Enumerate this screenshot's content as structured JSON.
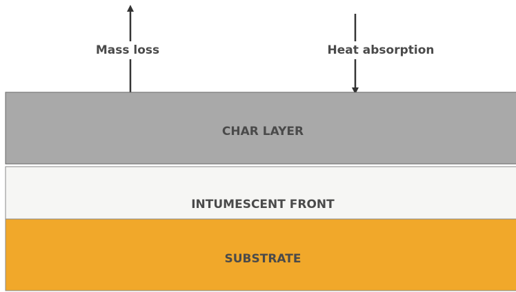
{
  "arrows": [
    {
      "label": "Mass loss"
    },
    {
      "label": "Heat absorption"
    }
  ],
  "layers": [
    {
      "label": "CHAR LAYER"
    },
    {
      "label": "INTUMESCENT FRONT"
    },
    {
      "label": "SUBSTRATE"
    }
  ]
}
